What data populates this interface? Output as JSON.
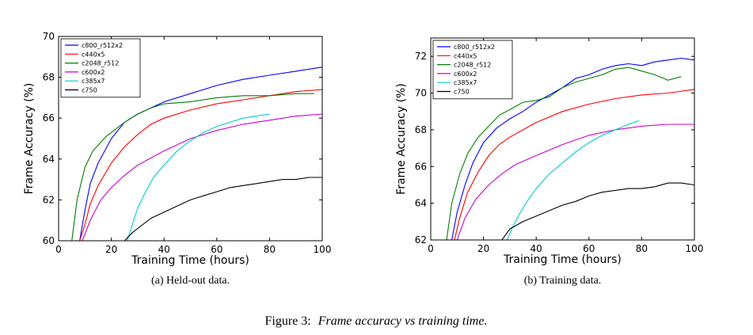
{
  "figure": {
    "caption_label": "Figure 3:",
    "caption_text": "Frame accuracy vs training time."
  },
  "chart_data": [
    {
      "type": "line",
      "subcaption": "(a)  Held-out data.",
      "xlabel": "Training Time (hours)",
      "ylabel": "Frame Accuracy (%)",
      "xlim": [
        0,
        100
      ],
      "ylim": [
        60,
        70
      ],
      "xticks": [
        0,
        20,
        40,
        60,
        80,
        100
      ],
      "yticks": [
        60,
        62,
        64,
        66,
        68,
        70
      ],
      "legend_position": "upper-left",
      "series": [
        {
          "name": "c800_r512x2",
          "color": "#0000ff",
          "points": [
            [
              8,
              60
            ],
            [
              10,
              61.5
            ],
            [
              12,
              62.8
            ],
            [
              15,
              63.8
            ],
            [
              20,
              65.0
            ],
            [
              25,
              65.8
            ],
            [
              30,
              66.2
            ],
            [
              35,
              66.5
            ],
            [
              40,
              66.8
            ],
            [
              50,
              67.2
            ],
            [
              60,
              67.6
            ],
            [
              70,
              67.9
            ],
            [
              80,
              68.1
            ],
            [
              90,
              68.3
            ],
            [
              100,
              68.5
            ]
          ]
        },
        {
          "name": "c440x5",
          "color": "#ff0000",
          "points": [
            [
              8,
              60
            ],
            [
              10,
              60.8
            ],
            [
              12,
              61.8
            ],
            [
              15,
              62.7
            ],
            [
              20,
              63.8
            ],
            [
              25,
              64.6
            ],
            [
              30,
              65.2
            ],
            [
              35,
              65.7
            ],
            [
              40,
              66.0
            ],
            [
              50,
              66.4
            ],
            [
              60,
              66.7
            ],
            [
              70,
              66.9
            ],
            [
              80,
              67.1
            ],
            [
              90,
              67.3
            ],
            [
              100,
              67.4
            ]
          ]
        },
        {
          "name": "c2048_r512",
          "color": "#008000",
          "points": [
            [
              5,
              60
            ],
            [
              7,
              62.0
            ],
            [
              10,
              63.6
            ],
            [
              13,
              64.4
            ],
            [
              18,
              65.1
            ],
            [
              25,
              65.8
            ],
            [
              30,
              66.2
            ],
            [
              35,
              66.5
            ],
            [
              40,
              66.7
            ],
            [
              50,
              66.8
            ],
            [
              60,
              67.0
            ],
            [
              70,
              67.1
            ],
            [
              80,
              67.1
            ],
            [
              90,
              67.2
            ],
            [
              97,
              67.2
            ]
          ]
        },
        {
          "name": "c600x2",
          "color": "#cc00cc",
          "points": [
            [
              9,
              60
            ],
            [
              12,
              61.0
            ],
            [
              16,
              62.0
            ],
            [
              20,
              62.6
            ],
            [
              25,
              63.2
            ],
            [
              30,
              63.7
            ],
            [
              40,
              64.4
            ],
            [
              50,
              65.0
            ],
            [
              60,
              65.4
            ],
            [
              70,
              65.7
            ],
            [
              80,
              65.9
            ],
            [
              90,
              66.1
            ],
            [
              100,
              66.2
            ]
          ]
        },
        {
          "name": "c385x7",
          "color": "#00cccc",
          "points": [
            [
              26,
              60
            ],
            [
              28,
              60.8
            ],
            [
              30,
              61.6
            ],
            [
              33,
              62.4
            ],
            [
              36,
              63.1
            ],
            [
              40,
              63.7
            ],
            [
              45,
              64.4
            ],
            [
              50,
              64.9
            ],
            [
              55,
              65.3
            ],
            [
              60,
              65.6
            ],
            [
              65,
              65.8
            ],
            [
              70,
              66.0
            ],
            [
              75,
              66.1
            ],
            [
              80,
              66.2
            ]
          ]
        },
        {
          "name": "c750",
          "color": "#000000",
          "points": [
            [
              25,
              60
            ],
            [
              28,
              60.4
            ],
            [
              30,
              60.6
            ],
            [
              35,
              61.1
            ],
            [
              40,
              61.4
            ],
            [
              45,
              61.7
            ],
            [
              50,
              62.0
            ],
            [
              55,
              62.2
            ],
            [
              60,
              62.4
            ],
            [
              65,
              62.6
            ],
            [
              70,
              62.7
            ],
            [
              75,
              62.8
            ],
            [
              80,
              62.9
            ],
            [
              85,
              63.0
            ],
            [
              90,
              63.0
            ],
            [
              95,
              63.1
            ],
            [
              100,
              63.1
            ]
          ]
        }
      ]
    },
    {
      "type": "line",
      "subcaption": "(b)  Training data.",
      "xlabel": "Training Time (hours)",
      "ylabel": "Frame Accuracy (%)",
      "xlim": [
        0,
        100
      ],
      "ylim": [
        62,
        73
      ],
      "xticks": [
        0,
        20,
        40,
        60,
        80,
        100
      ],
      "yticks": [
        62,
        64,
        66,
        68,
        70,
        72
      ],
      "legend_position": "upper-left",
      "series": [
        {
          "name": "c800_r512x2",
          "color": "#0000ff",
          "points": [
            [
              8,
              62
            ],
            [
              10,
              63.5
            ],
            [
              13,
              65.0
            ],
            [
              16,
              66.2
            ],
            [
              20,
              67.3
            ],
            [
              25,
              68.1
            ],
            [
              30,
              68.6
            ],
            [
              35,
              69.0
            ],
            [
              40,
              69.5
            ],
            [
              45,
              69.9
            ],
            [
              50,
              70.3
            ],
            [
              55,
              70.8
            ],
            [
              60,
              71.0
            ],
            [
              65,
              71.3
            ],
            [
              70,
              71.5
            ],
            [
              75,
              71.6
            ],
            [
              80,
              71.5
            ],
            [
              85,
              71.7
            ],
            [
              90,
              71.8
            ],
            [
              95,
              71.9
            ],
            [
              100,
              71.8
            ]
          ]
        },
        {
          "name": "c440x5",
          "color": "#ff0000",
          "points": [
            [
              9,
              62
            ],
            [
              11,
              63.2
            ],
            [
              14,
              64.6
            ],
            [
              18,
              65.7
            ],
            [
              22,
              66.6
            ],
            [
              26,
              67.2
            ],
            [
              30,
              67.6
            ],
            [
              35,
              68.0
            ],
            [
              40,
              68.4
            ],
            [
              50,
              69.0
            ],
            [
              60,
              69.4
            ],
            [
              70,
              69.7
            ],
            [
              80,
              69.9
            ],
            [
              90,
              70.0
            ],
            [
              100,
              70.2
            ]
          ]
        },
        {
          "name": "c2048_r512",
          "color": "#008000",
          "points": [
            [
              6,
              62
            ],
            [
              8,
              64.0
            ],
            [
              11,
              65.6
            ],
            [
              14,
              66.7
            ],
            [
              18,
              67.6
            ],
            [
              22,
              68.2
            ],
            [
              26,
              68.8
            ],
            [
              30,
              69.1
            ],
            [
              35,
              69.5
            ],
            [
              40,
              69.6
            ],
            [
              45,
              69.8
            ],
            [
              50,
              70.3
            ],
            [
              55,
              70.6
            ],
            [
              60,
              70.8
            ],
            [
              65,
              71.0
            ],
            [
              70,
              71.3
            ],
            [
              75,
              71.4
            ],
            [
              80,
              71.2
            ],
            [
              85,
              71.0
            ],
            [
              90,
              70.7
            ],
            [
              95,
              70.9
            ]
          ]
        },
        {
          "name": "c600x2",
          "color": "#cc00cc",
          "points": [
            [
              10,
              62
            ],
            [
              13,
              63.2
            ],
            [
              17,
              64.2
            ],
            [
              22,
              65.0
            ],
            [
              27,
              65.6
            ],
            [
              32,
              66.1
            ],
            [
              40,
              66.6
            ],
            [
              50,
              67.2
            ],
            [
              60,
              67.7
            ],
            [
              70,
              68.0
            ],
            [
              80,
              68.2
            ],
            [
              90,
              68.3
            ],
            [
              100,
              68.3
            ]
          ]
        },
        {
          "name": "c385x7",
          "color": "#00cccc",
          "points": [
            [
              29,
              62
            ],
            [
              31,
              62.7
            ],
            [
              34,
              63.5
            ],
            [
              37,
              64.2
            ],
            [
              40,
              64.8
            ],
            [
              45,
              65.6
            ],
            [
              50,
              66.2
            ],
            [
              55,
              66.8
            ],
            [
              60,
              67.3
            ],
            [
              65,
              67.7
            ],
            [
              70,
              68.0
            ],
            [
              75,
              68.3
            ],
            [
              79,
              68.5
            ]
          ]
        },
        {
          "name": "c750",
          "color": "#000000",
          "points": [
            [
              27,
              62
            ],
            [
              30,
              62.6
            ],
            [
              35,
              63.0
            ],
            [
              40,
              63.3
            ],
            [
              45,
              63.6
            ],
            [
              50,
              63.9
            ],
            [
              55,
              64.1
            ],
            [
              60,
              64.4
            ],
            [
              65,
              64.6
            ],
            [
              70,
              64.7
            ],
            [
              75,
              64.8
            ],
            [
              80,
              64.8
            ],
            [
              85,
              64.9
            ],
            [
              90,
              65.1
            ],
            [
              95,
              65.1
            ],
            [
              100,
              65.0
            ]
          ]
        }
      ]
    }
  ]
}
